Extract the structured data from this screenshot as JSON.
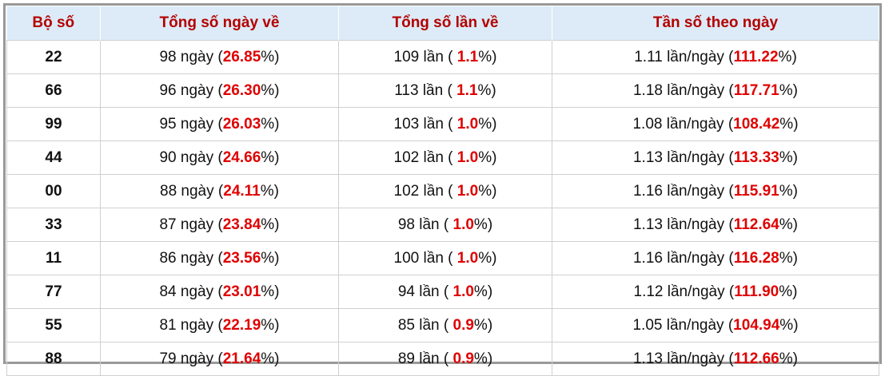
{
  "table": {
    "headers": [
      "Bộ số",
      "Tổng số ngày về",
      "Tổng số lần về",
      "Tần số theo ngày"
    ],
    "rows": [
      [
        "22",
        [
          "98 ngày (",
          "26.85",
          "%)"
        ],
        [
          "109 lần ( ",
          "1.1",
          "%)"
        ],
        [
          "1.11 lần/ngày (",
          "111.22",
          "%)"
        ]
      ],
      [
        "66",
        [
          "96 ngày (",
          "26.30",
          "%)"
        ],
        [
          "113 lần ( ",
          "1.1",
          "%)"
        ],
        [
          "1.18 lần/ngày (",
          "117.71",
          "%)"
        ]
      ],
      [
        "99",
        [
          "95 ngày (",
          "26.03",
          "%)"
        ],
        [
          "103 lần ( ",
          "1.0",
          "%)"
        ],
        [
          "1.08 lần/ngày (",
          "108.42",
          "%)"
        ]
      ],
      [
        "44",
        [
          "90 ngày (",
          "24.66",
          "%)"
        ],
        [
          "102 lần ( ",
          "1.0",
          "%)"
        ],
        [
          "1.13 lần/ngày (",
          "113.33",
          "%)"
        ]
      ],
      [
        "00",
        [
          "88 ngày (",
          "24.11",
          "%)"
        ],
        [
          "102 lần ( ",
          "1.0",
          "%)"
        ],
        [
          "1.16 lần/ngày (",
          "115.91",
          "%)"
        ]
      ],
      [
        "33",
        [
          "87 ngày (",
          "23.84",
          "%)"
        ],
        [
          "98 lần ( ",
          "1.0",
          "%)"
        ],
        [
          "1.13 lần/ngày (",
          "112.64",
          "%)"
        ]
      ],
      [
        "11",
        [
          "86 ngày (",
          "23.56",
          "%)"
        ],
        [
          "100 lần ( ",
          "1.0",
          "%)"
        ],
        [
          "1.16 lần/ngày (",
          "116.28",
          "%)"
        ]
      ],
      [
        "77",
        [
          "84 ngày (",
          "23.01",
          "%)"
        ],
        [
          "94 lần ( ",
          "1.0",
          "%)"
        ],
        [
          "1.12 lần/ngày (",
          "111.90",
          "%)"
        ]
      ],
      [
        "55",
        [
          "81 ngày (",
          "22.19",
          "%)"
        ],
        [
          "85 lần ( ",
          "0.9",
          "%)"
        ],
        [
          "1.05 lần/ngày (",
          "104.94",
          "%)"
        ]
      ],
      [
        "88",
        [
          "79 ngày (",
          "21.64",
          "%)"
        ],
        [
          "89 lần ( ",
          "0.9",
          "%)"
        ],
        [
          "1.13 lần/ngày (",
          "112.66",
          "%)"
        ]
      ]
    ]
  }
}
